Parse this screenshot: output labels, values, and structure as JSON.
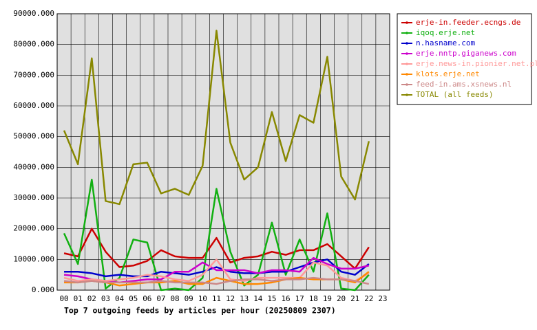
{
  "chart_data": {
    "type": "line",
    "title": "Top 7 outgoing feeds by articles per hour (20250809 2307)",
    "categories": [
      "00",
      "01",
      "02",
      "03",
      "04",
      "05",
      "06",
      "07",
      "08",
      "09",
      "10",
      "11",
      "12",
      "13",
      "14",
      "15",
      "16",
      "17",
      "18",
      "19",
      "20",
      "21",
      "22",
      "23"
    ],
    "ylim": [
      0,
      90000
    ],
    "yticks": [
      {
        "value": 0,
        "label": "0.000"
      },
      {
        "value": 10000,
        "label": "10000.000"
      },
      {
        "value": 20000,
        "label": "20000.000"
      },
      {
        "value": 30000,
        "label": "30000.000"
      },
      {
        "value": 40000,
        "label": "40000.000"
      },
      {
        "value": 50000,
        "label": "50000.000"
      },
      {
        "value": 60000,
        "label": "60000.000"
      },
      {
        "value": 70000,
        "label": "70000.000"
      },
      {
        "value": 80000,
        "label": "80000.000"
      },
      {
        "value": 90000,
        "label": "90000.000"
      }
    ],
    "grid": true,
    "legend": "right",
    "series": [
      {
        "name": "erje-in.feeder.ecngs.de",
        "color": "#cc0000",
        "values": [
          12000,
          11000,
          20000,
          12500,
          7500,
          8000,
          9500,
          13000,
          11000,
          10500,
          10500,
          17000,
          9000,
          10500,
          11000,
          12500,
          11500,
          13000,
          13000,
          15000,
          11000,
          7000,
          14000,
          null
        ]
      },
      {
        "name": "iqoq.erje.net",
        "color": "#11b011",
        "values": [
          18500,
          8500,
          36000,
          500,
          4000,
          16500,
          15500,
          0,
          500,
          0,
          4000,
          33000,
          12500,
          1500,
          5000,
          22000,
          5000,
          16500,
          6000,
          25000,
          500,
          0,
          5000,
          null
        ]
      },
      {
        "name": "n.hasname.com",
        "color": "#0000cc",
        "values": [
          6000,
          6000,
          5500,
          4500,
          5000,
          4500,
          4500,
          6000,
          5500,
          5000,
          6000,
          7500,
          6000,
          5500,
          5500,
          6000,
          6000,
          7500,
          9000,
          10000,
          6000,
          5000,
          8500,
          null
        ]
      },
      {
        "name": "erje.nntp.giganews.com",
        "color": "#cc00cc",
        "values": [
          5000,
          4500,
          3500,
          3000,
          2500,
          3000,
          3500,
          3500,
          6000,
          6000,
          9000,
          6500,
          6500,
          6500,
          5500,
          6500,
          6500,
          6000,
          10500,
          8500,
          7000,
          7000,
          8000,
          null
        ]
      },
      {
        "name": "erje.news-in.pionier.net.pl",
        "color": "#ff9999",
        "values": [
          4000,
          3000,
          3500,
          3000,
          3500,
          4000,
          5000,
          4500,
          3500,
          3000,
          5000,
          10000,
          3500,
          3000,
          4000,
          4000,
          4000,
          4000,
          9000,
          8000,
          4000,
          3000,
          5500,
          null
        ]
      },
      {
        "name": "klots.erje.net",
        "color": "#ff8800",
        "values": [
          2500,
          2500,
          3000,
          2500,
          1500,
          2000,
          2500,
          2500,
          3000,
          2000,
          2000,
          4000,
          3000,
          2000,
          2000,
          2500,
          3500,
          4000,
          3500,
          3500,
          3500,
          2500,
          6000,
          null
        ]
      },
      {
        "name": "feed-in.ams.xsnews.nl",
        "color": "#cc8888",
        "values": [
          3000,
          2500,
          3000,
          2500,
          2500,
          2500,
          2500,
          3000,
          2500,
          2500,
          2500,
          2000,
          3000,
          3500,
          3500,
          3000,
          3500,
          3500,
          4000,
          3500,
          3500,
          3000,
          2000,
          null
        ]
      },
      {
        "name": "TOTAL (all feeds)",
        "color": "#888800",
        "values": [
          52000,
          41000,
          75500,
          29000,
          28000,
          41000,
          41500,
          31500,
          33000,
          31000,
          40500,
          84500,
          48000,
          36000,
          40000,
          58000,
          42000,
          57000,
          54500,
          76000,
          37000,
          29500,
          48500,
          null
        ]
      }
    ]
  }
}
